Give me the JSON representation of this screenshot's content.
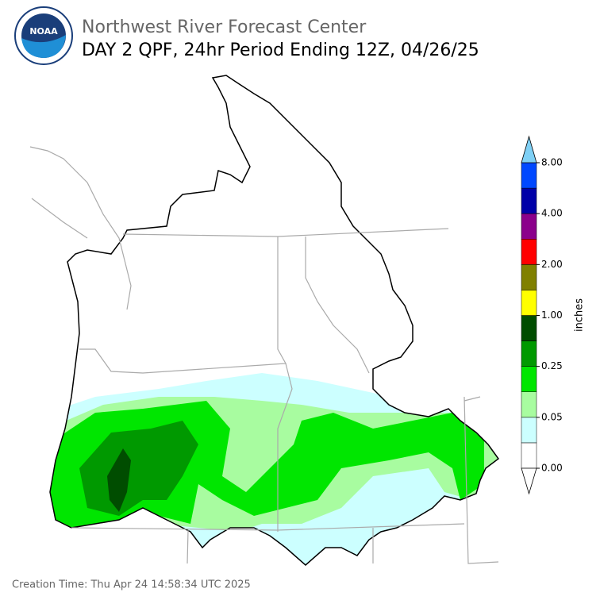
{
  "header": {
    "title": "Northwest River Forecast Center",
    "subtitle": "DAY 2 QPF, 24hr Period Ending 12Z, 04/26/25",
    "logo_text": "NOAA"
  },
  "colorbar": {
    "label": "inches",
    "colors": [
      "#ffffff",
      "#ccffff",
      "#a8fca0",
      "#00e600",
      "#009900",
      "#004d00",
      "#ffff00",
      "#808000",
      "#ff0000",
      "#8b008b",
      "#0000a8",
      "#0048ff"
    ],
    "over_color": "#7fd0f5",
    "ticks": [
      {
        "value": 0,
        "label": "0.00"
      },
      {
        "value": 0.05,
        "label": "0.05"
      },
      {
        "value": 0.25,
        "label": "0.25"
      },
      {
        "value": 1,
        "label": "1.00"
      },
      {
        "value": 2,
        "label": "2.00"
      },
      {
        "value": 4,
        "label": "4.00"
      },
      {
        "value": 8,
        "label": "8.00"
      }
    ]
  },
  "footer": {
    "creation_time": "Creation Time: Thu Apr 24 14:58:34 UTC 2025"
  }
}
